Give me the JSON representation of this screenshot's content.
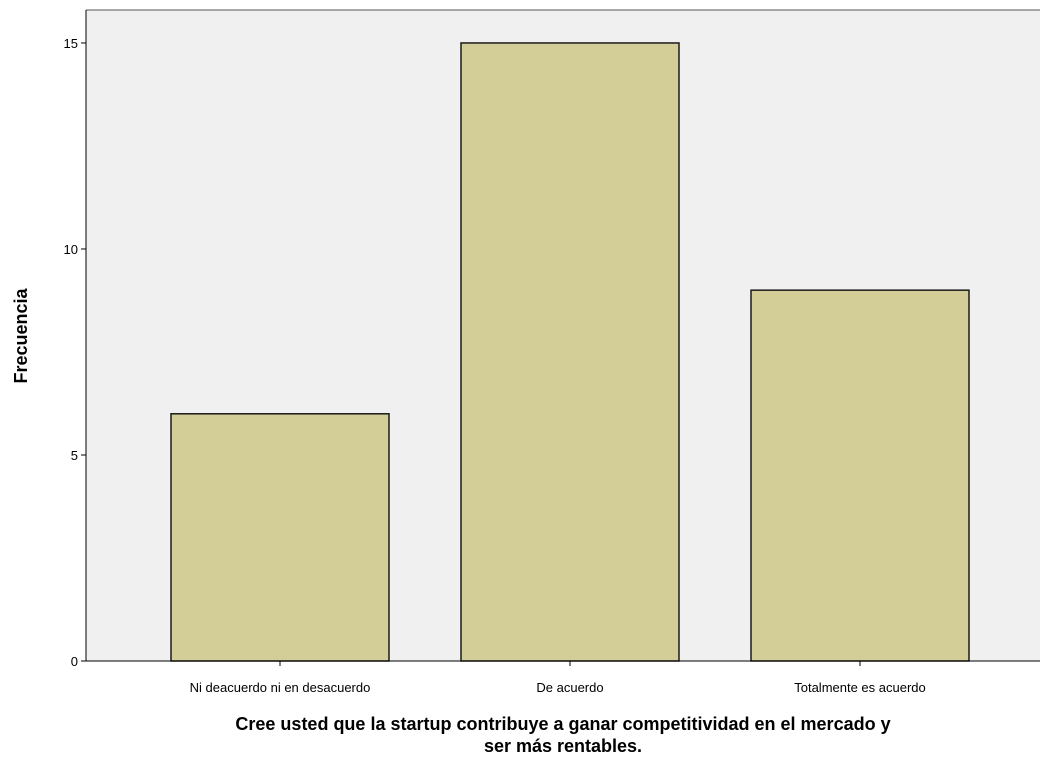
{
  "chart_data": {
    "type": "bar",
    "categories": [
      "Ni deacuerdo ni en desacuerdo",
      "De acuerdo",
      "Totalmente es acuerdo"
    ],
    "values": [
      6,
      15,
      9
    ],
    "title": "",
    "xlabel_lines": [
      "Cree usted que la startup contribuye a ganar competitividad en el mercado y",
      "ser más rentables."
    ],
    "ylabel": "Frecuencia",
    "ylim": [
      0,
      15.8
    ],
    "yticks": [
      0,
      5,
      10,
      15
    ],
    "ytick_labels": [
      "0",
      "5",
      "10",
      "15"
    ],
    "grid": false,
    "legend": "none",
    "colors": {
      "bar_fill": "#D3CE97",
      "bar_stroke": "#1a1a1a",
      "plot_background": "#F0F0F0",
      "axis": "#000000"
    }
  }
}
